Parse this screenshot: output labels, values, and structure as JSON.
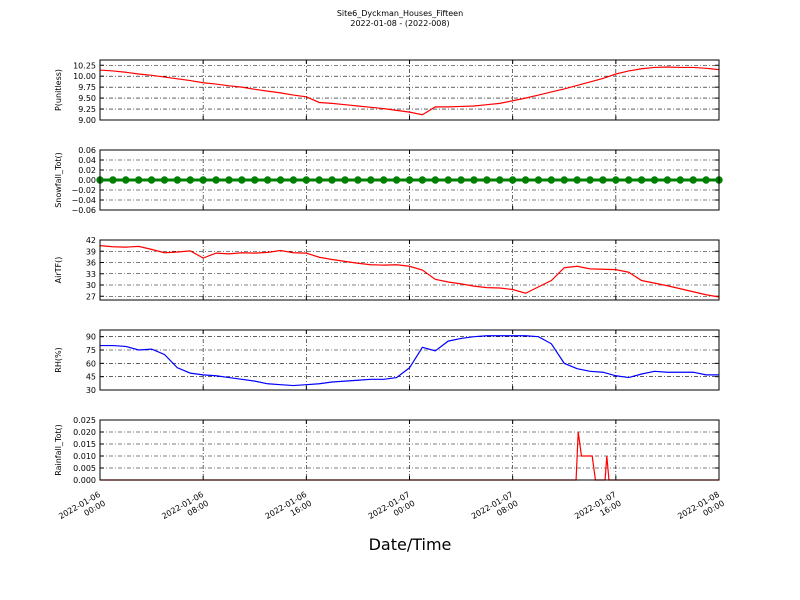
{
  "title": "Site6_Dyckman_Houses_Fifteen",
  "subtitle": "2022-01-08 - (2022-008)",
  "xlabel": "Date/Time",
  "chart_data": [
    {
      "type": "line",
      "ylabel": "P(unitless)",
      "color": "#ff0000",
      "grid": true,
      "xlim": [
        "2022-01-06 00:00",
        "2022-01-08 00:00"
      ],
      "xticks": [
        "2022-01-06 00:00",
        "2022-01-06 08:00",
        "2022-01-06 16:00",
        "2022-01-07 00:00",
        "2022-01-07 08:00",
        "2022-01-07 16:00",
        "2022-01-08 00:00"
      ],
      "ylim": [
        9.0,
        10.37
      ],
      "yticks": [
        {
          "value": 9.0,
          "label": "9.00"
        },
        9.25,
        {
          "value": 9.5,
          "label": "9.50"
        },
        9.75,
        {
          "value": 10.0,
          "label": "10.00"
        },
        10.25
      ],
      "x": [
        "2022-01-06 00:00",
        "2022-01-06 01:00",
        "2022-01-06 02:00",
        "2022-01-06 03:00",
        "2022-01-06 04:00",
        "2022-01-06 05:00",
        "2022-01-06 06:00",
        "2022-01-06 07:00",
        "2022-01-06 08:00",
        "2022-01-06 09:00",
        "2022-01-06 10:00",
        "2022-01-06 11:00",
        "2022-01-06 12:00",
        "2022-01-06 13:00",
        "2022-01-06 14:00",
        "2022-01-06 15:00",
        "2022-01-06 16:00",
        "2022-01-06 17:00",
        "2022-01-06 18:00",
        "2022-01-06 19:00",
        "2022-01-06 20:00",
        "2022-01-06 21:00",
        "2022-01-06 22:00",
        "2022-01-06 23:00",
        "2022-01-07 00:00",
        "2022-01-07 01:00",
        "2022-01-07 02:00",
        "2022-01-07 03:00",
        "2022-01-07 04:00",
        "2022-01-07 05:00",
        "2022-01-07 06:00",
        "2022-01-07 07:00",
        "2022-01-07 08:00",
        "2022-01-07 09:00",
        "2022-01-07 10:00",
        "2022-01-07 11:00",
        "2022-01-07 12:00",
        "2022-01-07 13:00",
        "2022-01-07 14:00",
        "2022-01-07 15:00",
        "2022-01-07 16:00",
        "2022-01-07 17:00",
        "2022-01-07 18:00",
        "2022-01-07 19:00",
        "2022-01-07 20:00",
        "2022-01-07 21:00",
        "2022-01-07 22:00",
        "2022-01-07 23:00",
        "2022-01-08 00:00"
      ],
      "values": [
        10.14,
        10.12,
        10.09,
        10.05,
        10.02,
        9.98,
        9.94,
        9.9,
        9.85,
        9.82,
        9.78,
        9.75,
        9.7,
        9.66,
        9.62,
        9.57,
        9.53,
        9.4,
        9.38,
        9.35,
        9.32,
        9.29,
        9.26,
        9.22,
        9.18,
        9.12,
        9.3,
        9.3,
        9.31,
        9.32,
        9.35,
        9.38,
        9.44,
        9.5,
        9.57,
        9.64,
        9.71,
        9.79,
        9.87,
        9.95,
        10.05,
        10.12,
        10.17,
        10.2,
        10.21,
        10.2,
        10.2,
        10.18,
        10.15
      ]
    },
    {
      "type": "line",
      "ylabel": "Snowfall_Tot()",
      "color": "#008000",
      "marker": "o",
      "grid": true,
      "xlim": [
        "2022-01-06 00:00",
        "2022-01-08 00:00"
      ],
      "xticks": [
        "2022-01-06 00:00",
        "2022-01-06 08:00",
        "2022-01-06 16:00",
        "2022-01-07 00:00",
        "2022-01-07 08:00",
        "2022-01-07 16:00",
        "2022-01-08 00:00"
      ],
      "ylim": [
        -0.06,
        0.06
      ],
      "yticks": [
        {
          "value": -0.06,
          "label": "−0.06"
        },
        {
          "value": -0.04,
          "label": "−0.04"
        },
        {
          "value": -0.02,
          "label": "−0.02"
        },
        {
          "value": 0,
          "label": "0.00"
        },
        0.02,
        0.04,
        0.06
      ],
      "x": [
        "2022-01-06 00:00",
        "2022-01-06 01:00",
        "2022-01-06 02:00",
        "2022-01-06 03:00",
        "2022-01-06 04:00",
        "2022-01-06 05:00",
        "2022-01-06 06:00",
        "2022-01-06 07:00",
        "2022-01-06 08:00",
        "2022-01-06 09:00",
        "2022-01-06 10:00",
        "2022-01-06 11:00",
        "2022-01-06 12:00",
        "2022-01-06 13:00",
        "2022-01-06 14:00",
        "2022-01-06 15:00",
        "2022-01-06 16:00",
        "2022-01-06 17:00",
        "2022-01-06 18:00",
        "2022-01-06 19:00",
        "2022-01-06 20:00",
        "2022-01-06 21:00",
        "2022-01-06 22:00",
        "2022-01-06 23:00",
        "2022-01-07 00:00",
        "2022-01-07 01:00",
        "2022-01-07 02:00",
        "2022-01-07 03:00",
        "2022-01-07 04:00",
        "2022-01-07 05:00",
        "2022-01-07 06:00",
        "2022-01-07 07:00",
        "2022-01-07 08:00",
        "2022-01-07 09:00",
        "2022-01-07 10:00",
        "2022-01-07 11:00",
        "2022-01-07 12:00",
        "2022-01-07 13:00",
        "2022-01-07 14:00",
        "2022-01-07 15:00",
        "2022-01-07 16:00",
        "2022-01-07 17:00",
        "2022-01-07 18:00",
        "2022-01-07 19:00",
        "2022-01-07 20:00",
        "2022-01-07 21:00",
        "2022-01-07 22:00",
        "2022-01-07 23:00",
        "2022-01-08 00:00"
      ],
      "values": [
        0,
        0,
        0,
        0,
        0,
        0,
        0,
        0,
        0,
        0,
        0,
        0,
        0,
        0,
        0,
        0,
        0,
        0,
        0,
        0,
        0,
        0,
        0,
        0,
        0,
        0,
        0,
        0,
        0,
        0,
        0,
        0,
        0,
        0,
        0,
        0,
        0,
        0,
        0,
        0,
        0,
        0,
        0,
        0,
        0,
        0,
        0,
        0,
        0
      ]
    },
    {
      "type": "line",
      "ylabel": "AirTF()",
      "color": "#ff0000",
      "grid": true,
      "xlim": [
        "2022-01-06 00:00",
        "2022-01-08 00:00"
      ],
      "xticks": [
        "2022-01-06 00:00",
        "2022-01-06 08:00",
        "2022-01-06 16:00",
        "2022-01-07 00:00",
        "2022-01-07 08:00",
        "2022-01-07 16:00",
        "2022-01-08 00:00"
      ],
      "ylim": [
        26,
        42
      ],
      "yticks": [
        27,
        30,
        33,
        36,
        39,
        42
      ],
      "x": [
        "2022-01-06 00:00",
        "2022-01-06 01:00",
        "2022-01-06 02:00",
        "2022-01-06 03:00",
        "2022-01-06 04:00",
        "2022-01-06 05:00",
        "2022-01-06 06:00",
        "2022-01-06 07:00",
        "2022-01-06 08:00",
        "2022-01-06 09:00",
        "2022-01-06 10:00",
        "2022-01-06 11:00",
        "2022-01-06 12:00",
        "2022-01-06 13:00",
        "2022-01-06 14:00",
        "2022-01-06 15:00",
        "2022-01-06 16:00",
        "2022-01-06 17:00",
        "2022-01-06 18:00",
        "2022-01-06 19:00",
        "2022-01-06 20:00",
        "2022-01-06 21:00",
        "2022-01-06 22:00",
        "2022-01-06 23:00",
        "2022-01-07 00:00",
        "2022-01-07 01:00",
        "2022-01-07 02:00",
        "2022-01-07 03:00",
        "2022-01-07 04:00",
        "2022-01-07 05:00",
        "2022-01-07 06:00",
        "2022-01-07 07:00",
        "2022-01-07 08:00",
        "2022-01-07 09:00",
        "2022-01-07 10:00",
        "2022-01-07 11:00",
        "2022-01-07 12:00",
        "2022-01-07 13:00",
        "2022-01-07 14:00",
        "2022-01-07 15:00",
        "2022-01-07 16:00",
        "2022-01-07 17:00",
        "2022-01-07 18:00",
        "2022-01-07 19:00",
        "2022-01-07 20:00",
        "2022-01-07 21:00",
        "2022-01-07 22:00",
        "2022-01-07 23:00",
        "2022-01-08 00:00"
      ],
      "values": [
        40.5,
        40.2,
        40.1,
        40.3,
        39.5,
        38.6,
        38.8,
        39.1,
        37.2,
        38.5,
        38.3,
        38.6,
        38.5,
        38.7,
        39.2,
        38.6,
        38.5,
        37.4,
        36.8,
        36.3,
        35.8,
        35.4,
        35.3,
        35.4,
        35.0,
        34.0,
        31.5,
        30.8,
        30.3,
        29.7,
        29.3,
        29.2,
        28.8,
        27.8,
        29.5,
        31.2,
        34.6,
        35.0,
        34.3,
        34.2,
        34.1,
        33.4,
        31.2,
        30.5,
        29.8,
        29.0,
        28.2,
        27.4,
        26.8
      ]
    },
    {
      "type": "line",
      "ylabel": "RH(%)",
      "color": "#0000ff",
      "grid": true,
      "xlim": [
        "2022-01-06 00:00",
        "2022-01-08 00:00"
      ],
      "xticks": [
        "2022-01-06 00:00",
        "2022-01-06 08:00",
        "2022-01-06 16:00",
        "2022-01-07 00:00",
        "2022-01-07 08:00",
        "2022-01-07 16:00",
        "2022-01-08 00:00"
      ],
      "ylim": [
        30,
        97.5
      ],
      "yticks": [
        30,
        45,
        60,
        75,
        90
      ],
      "x": [
        "2022-01-06 00:00",
        "2022-01-06 01:00",
        "2022-01-06 02:00",
        "2022-01-06 03:00",
        "2022-01-06 04:00",
        "2022-01-06 05:00",
        "2022-01-06 06:00",
        "2022-01-06 07:00",
        "2022-01-06 08:00",
        "2022-01-06 09:00",
        "2022-01-06 10:00",
        "2022-01-06 11:00",
        "2022-01-06 12:00",
        "2022-01-06 13:00",
        "2022-01-06 14:00",
        "2022-01-06 15:00",
        "2022-01-06 16:00",
        "2022-01-06 17:00",
        "2022-01-06 18:00",
        "2022-01-06 19:00",
        "2022-01-06 20:00",
        "2022-01-06 21:00",
        "2022-01-06 22:00",
        "2022-01-06 23:00",
        "2022-01-07 00:00",
        "2022-01-07 01:00",
        "2022-01-07 02:00",
        "2022-01-07 03:00",
        "2022-01-07 04:00",
        "2022-01-07 05:00",
        "2022-01-07 06:00",
        "2022-01-07 07:00",
        "2022-01-07 08:00",
        "2022-01-07 09:00",
        "2022-01-07 10:00",
        "2022-01-07 11:00",
        "2022-01-07 12:00",
        "2022-01-07 13:00",
        "2022-01-07 14:00",
        "2022-01-07 15:00",
        "2022-01-07 16:00",
        "2022-01-07 17:00",
        "2022-01-07 18:00",
        "2022-01-07 19:00",
        "2022-01-07 20:00",
        "2022-01-07 21:00",
        "2022-01-07 22:00",
        "2022-01-07 23:00",
        "2022-01-08 00:00"
      ],
      "values": [
        80,
        80,
        79,
        75,
        76,
        70,
        55,
        49,
        47,
        46,
        44,
        42,
        40,
        37,
        36,
        35,
        36,
        37,
        39,
        40,
        41,
        42,
        42,
        44,
        55,
        78,
        74,
        85,
        88,
        90,
        91,
        91,
        91,
        91,
        90,
        82,
        60,
        54,
        51,
        50,
        46,
        44,
        48,
        51,
        50,
        50,
        50,
        47,
        47
      ]
    },
    {
      "type": "line",
      "ylabel": "Rainfall_Tot()",
      "color": "#ff0000",
      "grid": true,
      "show_xtick_labels": true,
      "xlim": [
        "2022-01-06 00:00",
        "2022-01-08 00:00"
      ],
      "xticks": [
        "2022-01-06 00:00",
        "2022-01-06 08:00",
        "2022-01-06 16:00",
        "2022-01-07 00:00",
        "2022-01-07 08:00",
        "2022-01-07 16:00",
        "2022-01-08 00:00"
      ],
      "ylim": [
        0,
        0.025
      ],
      "yticks": [
        {
          "value": 0,
          "label": "0.000"
        },
        0.005,
        {
          "value": 0.01,
          "label": "0.010"
        },
        0.015,
        {
          "value": 0.02,
          "label": "0.020"
        },
        0.025
      ],
      "x": [
        "2022-01-06 00:00",
        "2022-01-07 12:55",
        "2022-01-07 13:05",
        "2022-01-07 13:20",
        "2022-01-07 14:10",
        "2022-01-07 14:25",
        "2022-01-07 15:10",
        "2022-01-07 15:18",
        "2022-01-07 15:28",
        "2022-01-08 00:00"
      ],
      "values": [
        0,
        0,
        0.02,
        0.01,
        0.01,
        0,
        0,
        0.01,
        0,
        0
      ]
    }
  ]
}
